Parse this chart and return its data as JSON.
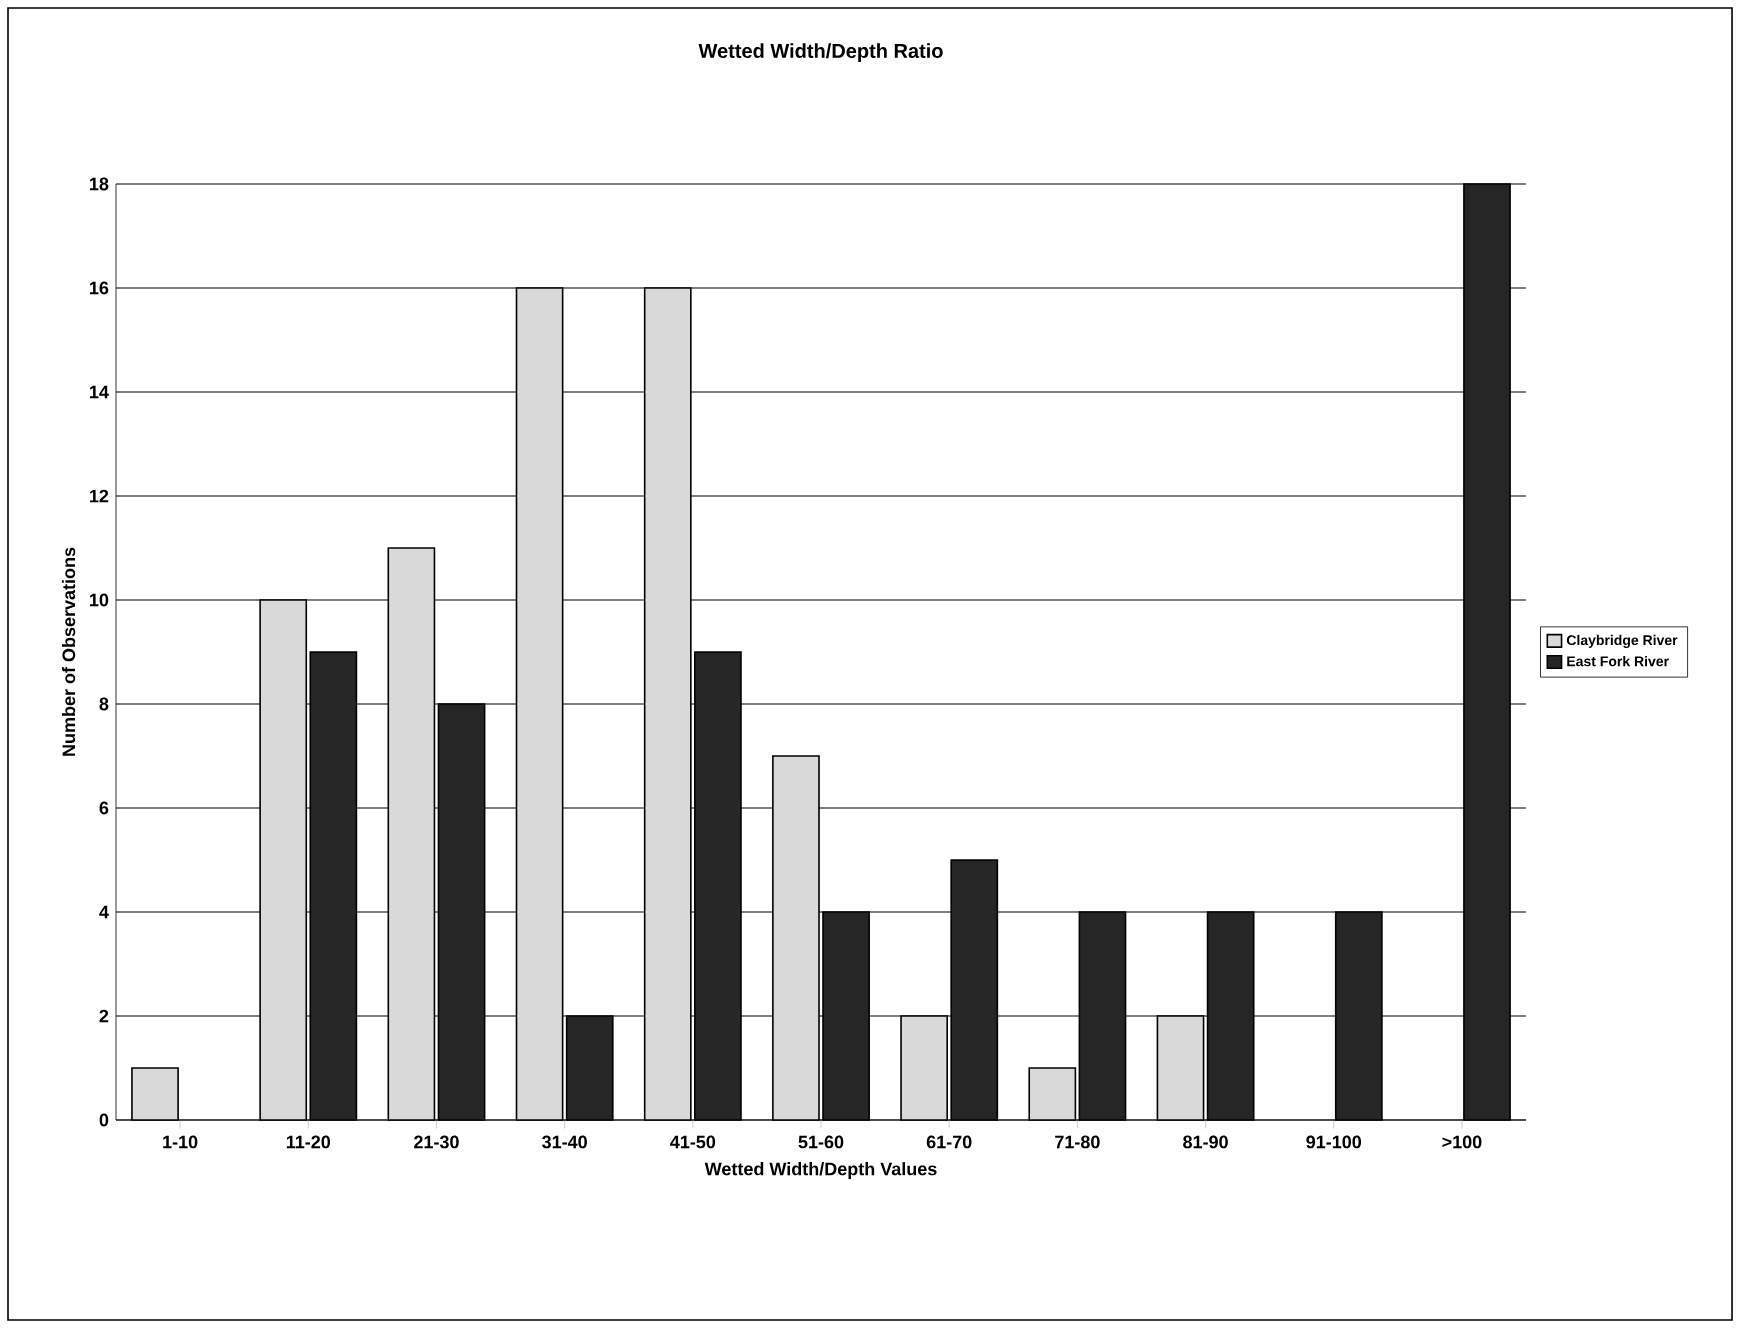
{
  "chart_data": {
    "type": "bar",
    "title": "Wetted Width/Depth Ratio",
    "xlabel": "Wetted Width/Depth Values",
    "ylabel": "Number of Observations",
    "categories": [
      "1-10",
      "11-20",
      "21-30",
      "31-40",
      "41-50",
      "51-60",
      "61-70",
      "71-80",
      "81-90",
      "91-100",
      ">100"
    ],
    "series": [
      {
        "name": "Claybridge River",
        "color": "#d9d9d9",
        "values": [
          1,
          10,
          11,
          16,
          16,
          7,
          2,
          1,
          2,
          null,
          null
        ]
      },
      {
        "name": "East Fork River",
        "color": "#262626",
        "values": [
          null,
          9,
          8,
          2,
          9,
          4,
          5,
          4,
          4,
          4,
          18
        ]
      }
    ],
    "ylim": [
      0,
      18
    ],
    "yticks": [
      0,
      2,
      4,
      6,
      8,
      10,
      12,
      14,
      16,
      18
    ],
    "grid": "y",
    "legend": "right"
  }
}
